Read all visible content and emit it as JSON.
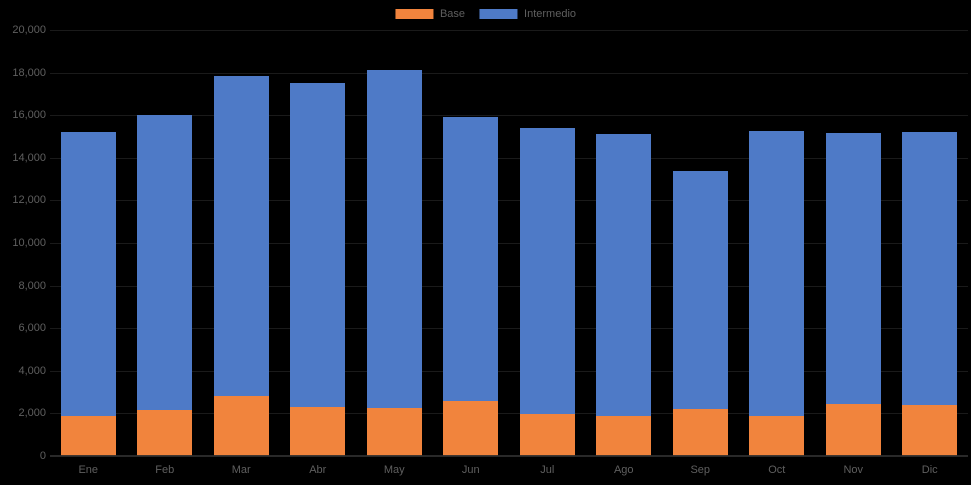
{
  "chart_data": {
    "type": "bar",
    "stacked": true,
    "title": "",
    "categories": [
      "Ene",
      "Feb",
      "Mar",
      "Abr",
      "May",
      "Jun",
      "Jul",
      "Ago",
      "Sep",
      "Oct",
      "Nov",
      "Dic"
    ],
    "series": [
      {
        "name": "Base",
        "color": "#f1843d",
        "values": [
          1900,
          2150,
          2800,
          2300,
          2250,
          2600,
          1950,
          1900,
          2200,
          1900,
          2450,
          2400
        ]
      },
      {
        "name": "Intermedio",
        "color": "#4e7ac7",
        "values": [
          13300,
          13850,
          15050,
          15200,
          15850,
          13300,
          13450,
          13200,
          11200,
          13350,
          12700,
          12800
        ]
      }
    ],
    "stacked_totals": [
      15200,
      16000,
      17850,
      17500,
      18100,
      15900,
      15400,
      15100,
      13400,
      15250,
      15150,
      15200
    ],
    "ylim": [
      0,
      20000
    ],
    "ytick_step": 2000,
    "ytick_labels_top_to_bottom": [
      "20,000",
      "18,000",
      "16,000",
      "14,000",
      "12,000",
      "10,000",
      "8,000",
      "6,000",
      "4,000",
      "2,000",
      "0"
    ],
    "legend_position": "top-center",
    "grid": "horizontal, barely visible on black",
    "background_color": "#000000",
    "label_color": "#5f5f5f",
    "axis_line_color": "#2d2d2d"
  }
}
